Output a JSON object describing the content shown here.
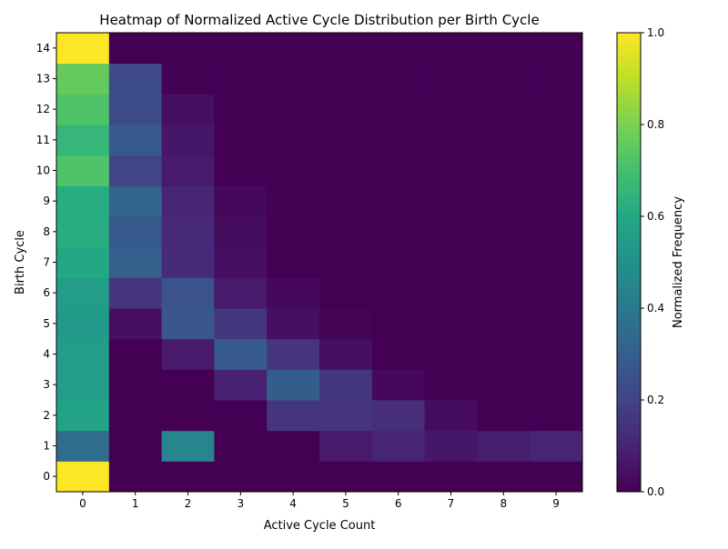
{
  "chart_data": {
    "type": "heatmap",
    "title": "Heatmap of Normalized Active Cycle Distribution per Birth Cycle",
    "xlabel": "Active Cycle Count",
    "ylabel": "Birth Cycle",
    "x_categories": [
      "0",
      "1",
      "2",
      "3",
      "4",
      "5",
      "6",
      "7",
      "8",
      "9"
    ],
    "y_categories": [
      "0",
      "1",
      "2",
      "3",
      "4",
      "5",
      "6",
      "7",
      "8",
      "9",
      "10",
      "11",
      "12",
      "13",
      "14"
    ],
    "values": [
      [
        1.0,
        0.0,
        0.0,
        0.0,
        0.0,
        0.0,
        0.0,
        0.0,
        0.0,
        0.0
      ],
      [
        0.35,
        0.0,
        0.45,
        0.0,
        0.0,
        0.07,
        0.1,
        0.06,
        0.08,
        0.1
      ],
      [
        0.58,
        0.0,
        0.0,
        0.0,
        0.15,
        0.15,
        0.13,
        0.03,
        0.0,
        0.0
      ],
      [
        0.55,
        0.0,
        0.0,
        0.09,
        0.29,
        0.16,
        0.02,
        0.0,
        0.0,
        0.0
      ],
      [
        0.55,
        0.0,
        0.07,
        0.28,
        0.15,
        0.04,
        0.0,
        0.0,
        0.0,
        0.0
      ],
      [
        0.54,
        0.04,
        0.27,
        0.16,
        0.04,
        0.01,
        0.0,
        0.0,
        0.0,
        0.0
      ],
      [
        0.55,
        0.15,
        0.25,
        0.07,
        0.02,
        0.0,
        0.0,
        0.0,
        0.0,
        0.0
      ],
      [
        0.6,
        0.3,
        0.12,
        0.04,
        0.0,
        0.0,
        0.0,
        0.0,
        0.0,
        0.0
      ],
      [
        0.62,
        0.28,
        0.12,
        0.03,
        0.0,
        0.0,
        0.0,
        0.0,
        0.0,
        0.0
      ],
      [
        0.62,
        0.32,
        0.1,
        0.02,
        0.0,
        0.0,
        0.0,
        0.0,
        0.0,
        0.0
      ],
      [
        0.72,
        0.2,
        0.07,
        0.0,
        0.0,
        0.0,
        0.0,
        0.0,
        0.0,
        0.0
      ],
      [
        0.66,
        0.28,
        0.06,
        0.0,
        0.0,
        0.0,
        0.0,
        0.0,
        0.0,
        0.0
      ],
      [
        0.72,
        0.23,
        0.04,
        0.0,
        0.0,
        0.0,
        0.0,
        0.0,
        0.0,
        0.0
      ],
      [
        0.76,
        0.23,
        0.0,
        0.0,
        0.0,
        0.0,
        0.0,
        0.0,
        0.0,
        0.0
      ],
      [
        1.0,
        0.0,
        0.0,
        0.0,
        0.0,
        0.0,
        0.0,
        0.0,
        0.0,
        0.0
      ]
    ],
    "colormap": "viridis",
    "value_range": [
      0,
      1
    ],
    "colorbar": {
      "label": "Normalized Frequency",
      "ticks": [
        "0.0",
        "0.2",
        "0.4",
        "0.6",
        "0.8",
        "1.0"
      ],
      "tick_values": [
        0.0,
        0.2,
        0.4,
        0.6,
        0.8,
        1.0
      ]
    },
    "grid": false
  }
}
